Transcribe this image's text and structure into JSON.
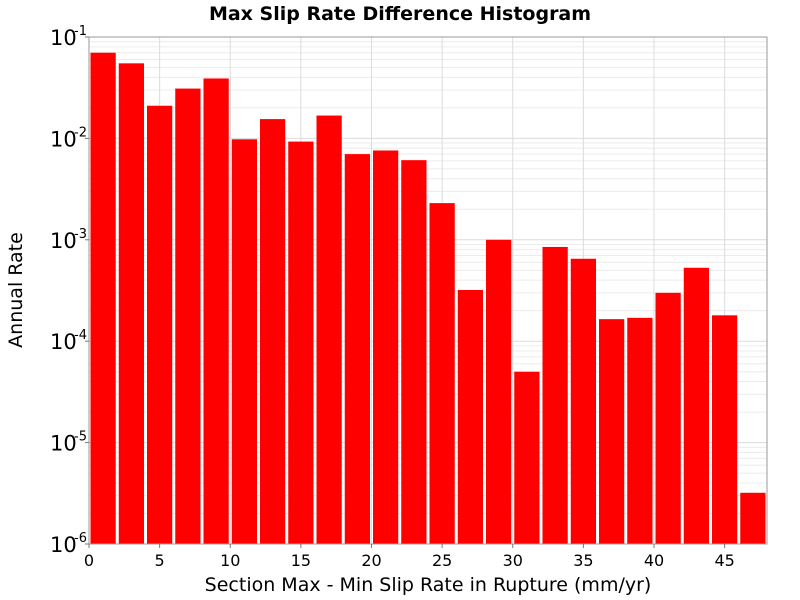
{
  "chart_data": {
    "type": "bar",
    "title": "Max Slip Rate Difference Histogram",
    "xlabel": "Section Max - Min Slip Rate in Rupture (mm/yr)",
    "ylabel": "Annual Rate",
    "xlim": [
      0,
      48
    ],
    "ylim": [
      1e-06,
      0.1
    ],
    "yscale": "log",
    "grid": true,
    "bar_width": 2,
    "x_ticks": [
      0,
      5,
      10,
      15,
      20,
      25,
      30,
      35,
      40,
      45
    ],
    "y_ticks": [
      {
        "base": "10",
        "exp": "-6",
        "value": 1e-06
      },
      {
        "base": "10",
        "exp": "-5",
        "value": 1e-05
      },
      {
        "base": "10",
        "exp": "-4",
        "value": 0.0001
      },
      {
        "base": "10",
        "exp": "-3",
        "value": 0.001
      },
      {
        "base": "10",
        "exp": "-2",
        "value": 0.01
      },
      {
        "base": "10",
        "exp": "-1",
        "value": 0.1
      }
    ],
    "bar_color": "#ff0000",
    "x": [
      1,
      3,
      5,
      7,
      9,
      11,
      13,
      15,
      17,
      19,
      21,
      23,
      25,
      27,
      29,
      31,
      33,
      35,
      37,
      39,
      41,
      43,
      45,
      47
    ],
    "values": [
      0.07,
      0.055,
      0.021,
      0.031,
      0.039,
      0.0098,
      0.0155,
      0.0093,
      0.0168,
      0.007,
      0.0076,
      0.0061,
      0.0023,
      0.00032,
      0.001,
      5e-05,
      0.00085,
      0.00065,
      0.000165,
      0.00017,
      0.0003,
      0.00053,
      0.00018,
      3.2e-06
    ]
  }
}
